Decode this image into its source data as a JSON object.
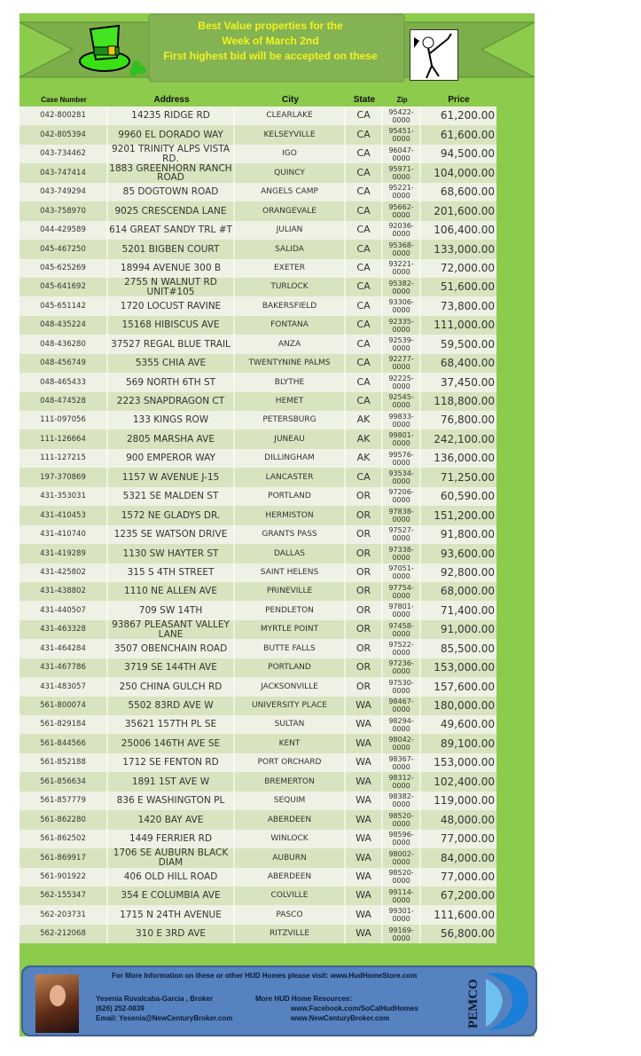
{
  "banner": {
    "line1": "Best Value properties for the",
    "line2": "Week of March 2nd",
    "line3": "First highest bid will be accepted on these"
  },
  "colors": {
    "background": "#8ccb4c",
    "banner": "#7cae49",
    "title_text": "#f2f21e",
    "row_light": "#eef2e4",
    "row_dark": "#d8e4bf",
    "footer": "#5782c0"
  },
  "icons": {
    "left": "leprechaun-hat-clover-icon",
    "right": "man-with-megaphone-icon",
    "footer_logo": "pemco-logo"
  },
  "table": {
    "headers": [
      "Case Number",
      "Address",
      "City",
      "State",
      "Zip",
      "Price"
    ],
    "rows": [
      [
        "042-800281",
        "14235 RIDGE RD",
        "CLEARLAKE",
        "CA",
        "95422-0000",
        "61,200.00"
      ],
      [
        "042-805394",
        "9960 EL DORADO WAY",
        "KELSEYVILLE",
        "CA",
        "95451-0000",
        "61,600.00"
      ],
      [
        "043-734462",
        "9201 TRINITY ALPS VISTA RD.",
        "IGO",
        "CA",
        "96047-0000",
        "94,500.00"
      ],
      [
        "043-747414",
        "1883 GREENHORN RANCH ROAD",
        "QUINCY",
        "CA",
        "95971-0000",
        "104,000.00"
      ],
      [
        "043-749294",
        "85 DOGTOWN ROAD",
        "ANGELS CAMP",
        "CA",
        "95221-0000",
        "68,600.00"
      ],
      [
        "043-758970",
        "9025 CRESCENDA LANE",
        "ORANGEVALE",
        "CA",
        "95662-0000",
        "201,600.00"
      ],
      [
        "044-429589",
        "614 GREAT SANDY TRL #T",
        "JULIAN",
        "CA",
        "92036-0000",
        "106,400.00"
      ],
      [
        "045-467250",
        "5201 BIGBEN COURT",
        "SALIDA",
        "CA",
        "95368-0000",
        "133,000.00"
      ],
      [
        "045-625269",
        "18994 AVENUE 300 B",
        "EXETER",
        "CA",
        "93221-0000",
        "72,000.00"
      ],
      [
        "045-641692",
        "2755 N WALNUT RD UNIT#105",
        "TURLOCK",
        "CA",
        "95382-0000",
        "51,600.00"
      ],
      [
        "045-651142",
        "1720 LOCUST RAVINE",
        "BAKERSFIELD",
        "CA",
        "93306-0000",
        "73,800.00"
      ],
      [
        "048-435224",
        "15168 HIBISCUS AVE",
        "FONTANA",
        "CA",
        "92335-0000",
        "111,000.00"
      ],
      [
        "048-436280",
        "37527 REGAL BLUE TRAIL",
        "ANZA",
        "CA",
        "92539-0000",
        "59,500.00"
      ],
      [
        "048-456749",
        "5355 CHIA AVE",
        "TWENTYNINE PALMS",
        "CA",
        "92277-0000",
        "68,400.00"
      ],
      [
        "048-465433",
        "569 NORTH 6TH ST",
        "BLYTHE",
        "CA",
        "92225-0000",
        "37,450.00"
      ],
      [
        "048-474528",
        "2223 SNAPDRAGON CT",
        "HEMET",
        "CA",
        "92545-0000",
        "118,800.00"
      ],
      [
        "111-097056",
        "133 KINGS ROW",
        "PETERSBURG",
        "AK",
        "99833-0000",
        "76,800.00"
      ],
      [
        "111-126664",
        "2805 MARSHA AVE",
        "JUNEAU",
        "AK",
        "99801-0000",
        "242,100.00"
      ],
      [
        "111-127215",
        "900 EMPEROR WAY",
        "DILLINGHAM",
        "AK",
        "99576-0000",
        "136,000.00"
      ],
      [
        "197-370869",
        "1157 W AVENUE J-15",
        "LANCASTER",
        "CA",
        "93534-0000",
        "71,250.00"
      ],
      [
        "431-353031",
        "5321 SE MALDEN ST",
        "PORTLAND",
        "OR",
        "97206-0000",
        "60,590.00"
      ],
      [
        "431-410453",
        "1572 NE GLADYS DR.",
        "HERMISTON",
        "OR",
        "97838-0000",
        "151,200.00"
      ],
      [
        "431-410740",
        "1235 SE WATSON DRIVE",
        "GRANTS PASS",
        "OR",
        "97527-0000",
        "91,800.00"
      ],
      [
        "431-419289",
        "1130 SW HAYTER ST",
        "DALLAS",
        "OR",
        "97338-0000",
        "93,600.00"
      ],
      [
        "431-425802",
        "315 S 4TH STREET",
        "SAINT HELENS",
        "OR",
        "97051-0000",
        "92,800.00"
      ],
      [
        "431-438802",
        "1110 NE ALLEN AVE",
        "PRINEVILLE",
        "OR",
        "97754-0000",
        "68,000.00"
      ],
      [
        "431-440507",
        "709 SW 14TH",
        "PENDLETON",
        "OR",
        "97801-0000",
        "71,400.00"
      ],
      [
        "431-463328",
        "93867 PLEASANT VALLEY LANE",
        "MYRTLE POINT",
        "OR",
        "97458-0000",
        "91,000.00"
      ],
      [
        "431-464284",
        "3507 OBENCHAIN ROAD",
        "BUTTE FALLS",
        "OR",
        "97522-0000",
        "85,500.00"
      ],
      [
        "431-467786",
        "3719 SE 144TH AVE",
        "PORTLAND",
        "OR",
        "97236-0000",
        "153,000.00"
      ],
      [
        "431-483057",
        "250 CHINA GULCH RD",
        "JACKSONVILLE",
        "OR",
        "97530-0000",
        "157,600.00"
      ],
      [
        "561-800074",
        "5502 83RD AVE W",
        "UNIVERSITY PLACE",
        "WA",
        "98467-0000",
        "180,000.00"
      ],
      [
        "561-829184",
        "35621 157TH PL SE",
        "SULTAN",
        "WA",
        "98294-0000",
        "49,600.00"
      ],
      [
        "561-844566",
        "25006 146TH AVE SE",
        "KENT",
        "WA",
        "98042-0000",
        "89,100.00"
      ],
      [
        "561-852188",
        "1712 SE FENTON RD",
        "PORT ORCHARD",
        "WA",
        "98367-0000",
        "153,000.00"
      ],
      [
        "561-856634",
        "1891 1ST AVE W",
        "BREMERTON",
        "WA",
        "98312-0000",
        "102,400.00"
      ],
      [
        "561-857779",
        "836 E WASHINGTON PL",
        "SEQUIM",
        "WA",
        "98382-0000",
        "119,000.00"
      ],
      [
        "561-862280",
        "1420 BAY AVE",
        "ABERDEEN",
        "WA",
        "98520-0000",
        "48,000.00"
      ],
      [
        "561-862502",
        "1449 FERRIER RD",
        "WINLOCK",
        "WA",
        "98596-0000",
        "77,000.00"
      ],
      [
        "561-869917",
        "1706 SE AUBURN BLACK DIAM",
        "AUBURN",
        "WA",
        "98002-0000",
        "84,000.00"
      ],
      [
        "561-901922",
        "406 OLD HILL ROAD",
        "ABERDEEN",
        "WA",
        "98520-0000",
        "77,000.00"
      ],
      [
        "562-155347",
        "354 E COLUMBIA AVE",
        "COLVILLE",
        "WA",
        "99114-0000",
        "67,200.00"
      ],
      [
        "562-203731",
        "1715 N 24TH AVENUE",
        "PASCO",
        "WA",
        "99301-0000",
        "111,600.00"
      ],
      [
        "562-212068",
        "310 E 3RD AVE",
        "RITZVILLE",
        "WA",
        "99169-0000",
        "56,800.00"
      ]
    ]
  },
  "footer": {
    "visit": "For More Information on these or other HUD Homes please visit: www.HudHomeStore.com",
    "broker_name": "Yesenia Ruvalcaba-Garcia , Broker",
    "phone": "(626) 252-0839",
    "email": "Email: Yesenia@NewCenturyBroker.com",
    "resources_title": "More HUD Home Resources:",
    "resource1": "www.Facebook.com/SoCalHudHomes",
    "resource2": "www.NewCenturyBroker.com",
    "logo_text": "PEMCO"
  }
}
